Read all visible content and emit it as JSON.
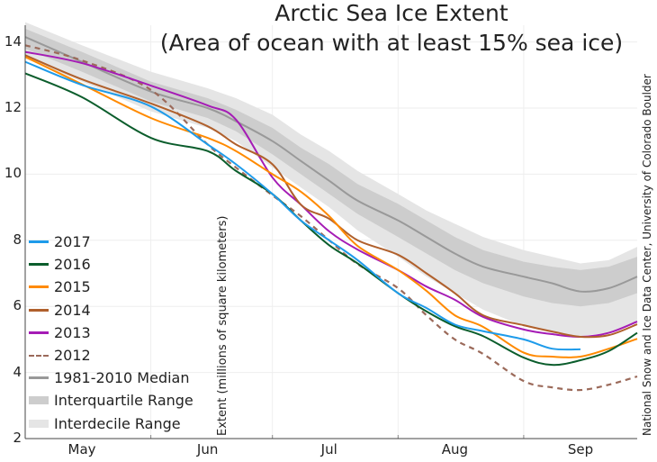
{
  "chart_data": {
    "type": "line",
    "title": "Arctic Sea Ice Extent",
    "subtitle": "(Area of ocean with at least 15% sea ice)",
    "ylabel": "Extent (millions of square kilometers)",
    "xlabel": "",
    "credit": "National Snow and Ice Data Center, University of Colorado Boulder",
    "ylim": [
      2,
      14.8
    ],
    "yticks": [
      2,
      4,
      6,
      8,
      10,
      12,
      14
    ],
    "xrange": [
      "May 1",
      "Sep 29"
    ],
    "xticks": [
      {
        "label": "May",
        "date": "May 15"
      },
      {
        "label": "Jun",
        "date": "Jun 15"
      },
      {
        "label": "Jul",
        "date": "Jul 15"
      },
      {
        "label": "Aug",
        "date": "Aug 15"
      },
      {
        "label": "Sep",
        "date": "Sep 15"
      }
    ],
    "grid": true,
    "legend_position": "left",
    "x": [
      "May 1",
      "May 15",
      "Jun 1",
      "Jun 15",
      "Jun 22",
      "Jul 1",
      "Jul 8",
      "Jul 15",
      "Jul 22",
      "Aug 1",
      "Aug 8",
      "Aug 15",
      "Aug 22",
      "Sep 1",
      "Sep 8",
      "Sep 15",
      "Sep 22",
      "Sep 29"
    ],
    "interdecile": {
      "name": "Interdecile Range",
      "color": "#e5e5e5",
      "lower": [
        13.5,
        12.8,
        11.9,
        11.4,
        11.0,
        10.2,
        9.6,
        9.0,
        8.3,
        7.5,
        6.9,
        6.4,
        5.9,
        5.4,
        5.2,
        5.1,
        5.2,
        5.5
      ],
      "upper": [
        14.6,
        13.9,
        13.1,
        12.6,
        12.3,
        11.8,
        11.2,
        10.7,
        10.1,
        9.4,
        8.9,
        8.5,
        8.1,
        7.7,
        7.5,
        7.3,
        7.4,
        7.8
      ]
    },
    "interquartile": {
      "name": "Interquartile Range",
      "color": "#cdcdcd",
      "lower": [
        13.8,
        13.1,
        12.2,
        11.7,
        11.3,
        10.6,
        10.0,
        9.4,
        8.8,
        8.1,
        7.6,
        7.1,
        6.7,
        6.3,
        6.1,
        6.0,
        6.1,
        6.4
      ],
      "upper": [
        14.4,
        13.7,
        12.8,
        12.3,
        11.95,
        11.4,
        10.8,
        10.3,
        9.7,
        9.1,
        8.6,
        8.1,
        7.7,
        7.35,
        7.2,
        7.1,
        7.2,
        7.5
      ]
    },
    "series": [
      {
        "name": "2017",
        "color": "#1e9bea",
        "dash": false,
        "values": [
          13.4,
          12.7,
          12.05,
          10.9,
          10.3,
          9.4,
          8.6,
          8.0,
          7.4,
          6.4,
          5.95,
          5.45,
          5.25,
          5.0,
          4.72,
          4.7,
          null,
          null
        ]
      },
      {
        "name": "2016",
        "color": "#0b5d2c",
        "dash": false,
        "values": [
          13.05,
          12.33,
          11.1,
          10.7,
          10.1,
          9.4,
          8.6,
          7.85,
          7.3,
          6.4,
          5.85,
          5.4,
          5.1,
          4.45,
          4.23,
          4.37,
          4.65,
          5.2
        ]
      },
      {
        "name": "2015",
        "color": "#ff8a00",
        "dash": false,
        "values": [
          13.55,
          12.72,
          11.7,
          11.1,
          10.7,
          10.0,
          9.47,
          8.73,
          7.83,
          7.1,
          6.47,
          5.73,
          5.38,
          4.6,
          4.48,
          4.48,
          4.72,
          5.02
        ]
      },
      {
        "name": "2014",
        "color": "#b0602c",
        "dash": false,
        "values": [
          13.6,
          12.87,
          12.14,
          11.45,
          10.9,
          10.3,
          9.08,
          8.65,
          8.0,
          7.56,
          7.0,
          6.4,
          5.73,
          5.43,
          5.24,
          5.08,
          5.13,
          5.46
        ]
      },
      {
        "name": "2013",
        "color": "#a51cb5",
        "dash": false,
        "values": [
          13.7,
          13.36,
          12.68,
          12.08,
          11.65,
          9.9,
          9.08,
          8.27,
          7.72,
          7.1,
          6.6,
          6.2,
          5.68,
          5.3,
          5.16,
          5.08,
          5.2,
          5.54
        ]
      },
      {
        "name": "2012",
        "color": "#9b6a5a",
        "dash": true,
        "values": [
          13.9,
          13.44,
          12.55,
          10.9,
          10.2,
          9.36,
          8.73,
          8.0,
          7.28,
          6.55,
          5.73,
          5.0,
          4.56,
          3.74,
          3.55,
          3.47,
          3.63,
          3.88
        ]
      },
      {
        "name": "1981-2010 Median",
        "color": "#999999",
        "dash": false,
        "values": [
          14.15,
          13.4,
          12.5,
          12.0,
          11.6,
          11.0,
          10.4,
          9.8,
          9.2,
          8.6,
          8.1,
          7.6,
          7.2,
          6.9,
          6.7,
          6.45,
          6.55,
          6.9
        ]
      }
    ]
  }
}
